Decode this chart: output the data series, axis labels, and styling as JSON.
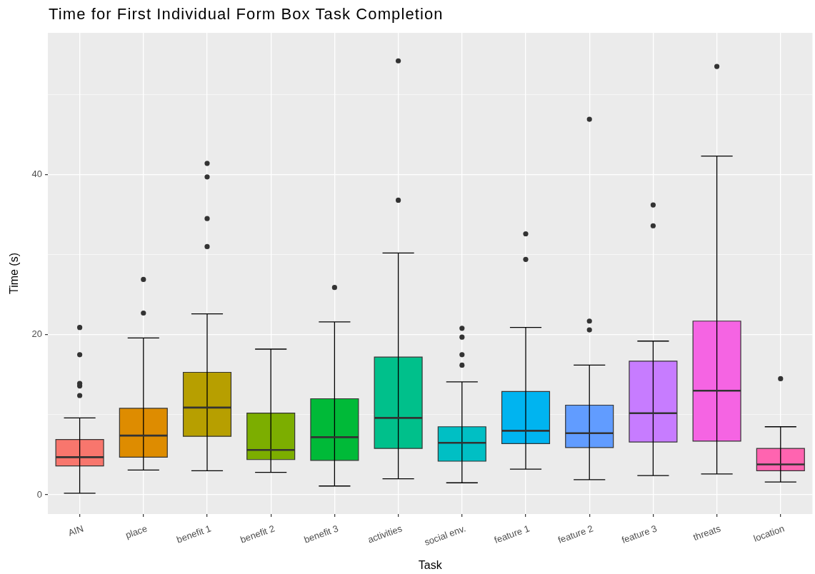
{
  "chart_data": {
    "type": "box",
    "title": "Time for First Individual Form Box Task Completion",
    "xlabel": "Task",
    "ylabel": "Time (s)",
    "categories": [
      "AIN",
      "place",
      "benefit 1",
      "benefit 2",
      "benefit 3",
      "activities",
      "social env.",
      "feature 1",
      "feature 2",
      "feature 3",
      "threats",
      "location"
    ],
    "colors": [
      "#f8766d",
      "#de8c00",
      "#b79f00",
      "#7cae00",
      "#00ba38",
      "#00c08b",
      "#00bfc4",
      "#00b4f0",
      "#619cff",
      "#c77cff",
      "#f564e3",
      "#ff64b0"
    ],
    "boxes": [
      {
        "low": 0.2,
        "q1": 3.6,
        "median": 4.7,
        "q3": 6.9,
        "high": 9.6,
        "outliers": [
          12.4,
          13.6,
          13.9,
          17.5,
          20.9
        ]
      },
      {
        "low": 3.1,
        "q1": 4.7,
        "median": 7.4,
        "q3": 10.8,
        "high": 19.6,
        "outliers": [
          22.7,
          26.9
        ]
      },
      {
        "low": 3.0,
        "q1": 7.3,
        "median": 10.9,
        "q3": 15.3,
        "high": 22.6,
        "outliers": [
          31.0,
          34.5,
          39.7,
          41.4
        ]
      },
      {
        "low": 2.8,
        "q1": 4.4,
        "median": 5.6,
        "q3": 10.2,
        "high": 18.2
      },
      {
        "low": 1.1,
        "q1": 4.3,
        "median": 7.2,
        "q3": 12.0,
        "high": 21.6,
        "outliers": [
          25.9
        ]
      },
      {
        "low": 2.0,
        "q1": 5.8,
        "median": 9.6,
        "q3": 17.2,
        "high": 30.2,
        "outliers": [
          36.8,
          54.2
        ]
      },
      {
        "low": 1.5,
        "q1": 4.2,
        "median": 6.5,
        "q3": 8.5,
        "high": 14.1,
        "outliers": [
          16.2,
          17.5,
          19.7,
          20.8
        ]
      },
      {
        "low": 3.2,
        "q1": 6.4,
        "median": 8.0,
        "q3": 12.9,
        "high": 20.9,
        "outliers": [
          29.4,
          32.6
        ]
      },
      {
        "low": 1.9,
        "q1": 5.9,
        "median": 7.7,
        "q3": 11.2,
        "high": 16.2,
        "outliers": [
          20.6,
          21.7,
          46.9
        ]
      },
      {
        "low": 2.4,
        "q1": 6.6,
        "median": 10.2,
        "q3": 16.7,
        "high": 19.2,
        "outliers": [
          33.6,
          36.2
        ]
      },
      {
        "low": 2.6,
        "q1": 6.7,
        "median": 13.0,
        "q3": 21.7,
        "high": 42.3,
        "outliers": [
          53.5
        ]
      },
      {
        "low": 1.6,
        "q1": 3.0,
        "median": 3.8,
        "q3": 5.8,
        "high": 8.5,
        "outliers": [
          14.5
        ]
      }
    ],
    "ylim": [
      -2.4,
      57.7
    ],
    "yticks": [
      0,
      {
        "value": 10,
        "label": null
      },
      20,
      {
        "value": 30,
        "label": null
      },
      40,
      {
        "value": 50,
        "label": null
      }
    ],
    "grid": true
  }
}
